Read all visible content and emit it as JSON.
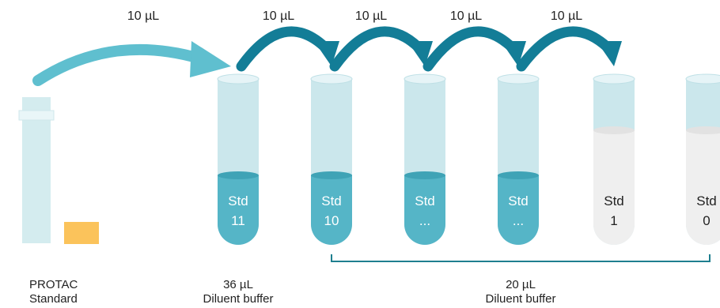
{
  "colors": {
    "tube_glass": "#cbe7ec",
    "tube_rim": "#e6f4f7",
    "liquid": "#55b5c7",
    "liquid_top": "#3fa3b6",
    "empty_liquid": "#efefef",
    "arrow_dark": "#137d97",
    "arrow_light": "#5fbfcf",
    "bracket": "#1e7f8f",
    "cap": "#fbc35b"
  },
  "transfers": [
    {
      "label": "10 µL"
    },
    {
      "label": "10 µL"
    },
    {
      "label": "10 µL"
    },
    {
      "label": "10 µL"
    },
    {
      "label": "10 µL"
    }
  ],
  "tubes": [
    {
      "line1": "Std",
      "line2": "11",
      "filled": true
    },
    {
      "line1": "Std",
      "line2": "10",
      "filled": true
    },
    {
      "line1": "Std",
      "line2": "...",
      "filled": true
    },
    {
      "line1": "Std",
      "line2": "...",
      "filled": true
    },
    {
      "line1": "Std",
      "line2": "1",
      "filled": false
    },
    {
      "line1": "Std",
      "line2": "0",
      "filled": false
    }
  ],
  "labels": {
    "protac_line1": "PROTAC",
    "protac_line2": "Standard",
    "diluent36_vol": "36 µL",
    "diluent36_name": "Diluent buffer",
    "diluent20_vol": "20 µL",
    "diluent20_name": "Diluent buffer"
  },
  "icons": {
    "standard_vial": "vial-icon",
    "cap": "cap-icon"
  }
}
